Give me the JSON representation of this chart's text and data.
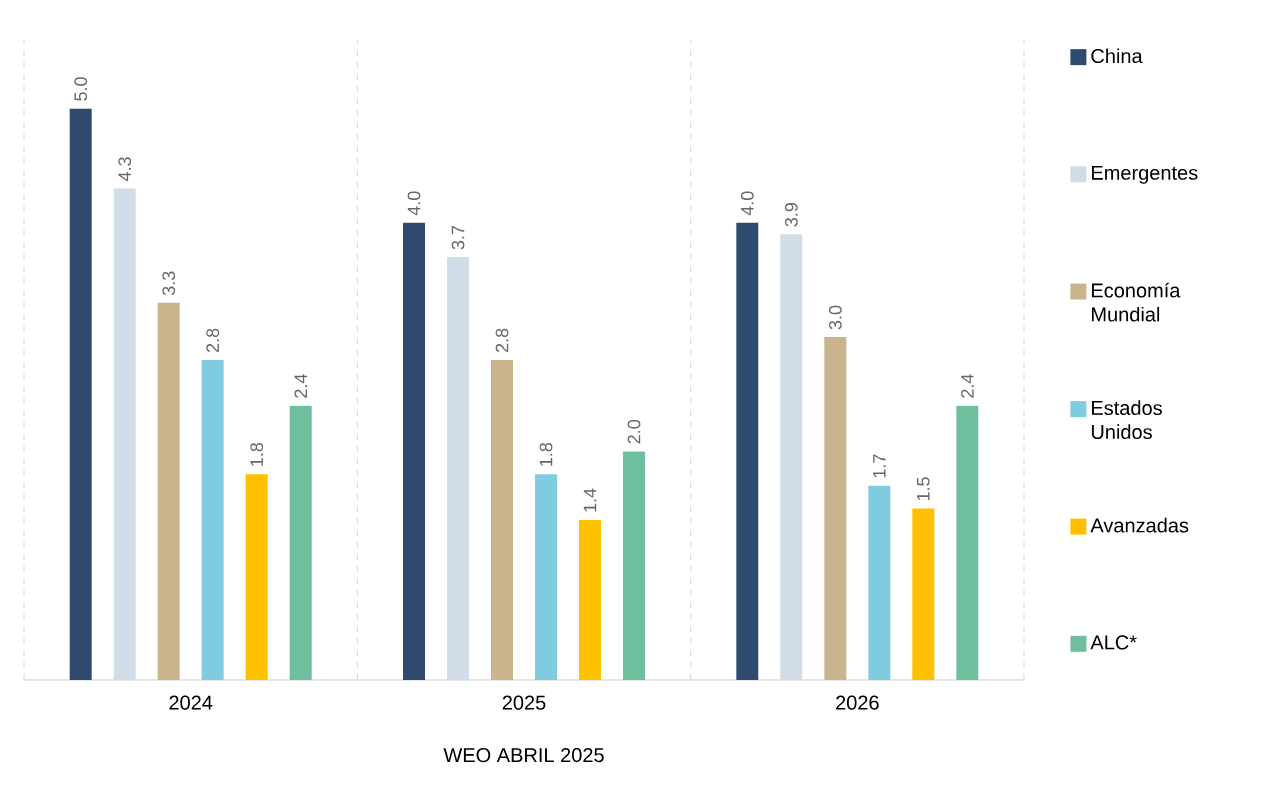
{
  "chart_data": {
    "type": "bar",
    "xlabel": "WEO ABRIL 2025",
    "categories": [
      "2024",
      "2025",
      "2026"
    ],
    "series": [
      {
        "name": "China",
        "color": "#2e4a6e",
        "values": [
          5.0,
          4.0,
          4.0
        ],
        "value_labels": [
          "5.0",
          "4.0",
          "4.0"
        ]
      },
      {
        "name": "Emergentes",
        "color": "#d0dce8",
        "values": [
          4.3,
          3.7,
          3.9
        ],
        "value_labels": [
          "4.3",
          "3.7",
          "3.9"
        ]
      },
      {
        "name": "Economía Mundial",
        "color": "#c9b48e",
        "values": [
          3.3,
          2.8,
          3.0
        ],
        "value_labels": [
          "3.3",
          "2.8",
          "3.0"
        ]
      },
      {
        "name": "Estados Unidos",
        "color": "#7fcce0",
        "values": [
          2.8,
          1.8,
          1.7
        ],
        "value_labels": [
          "2.8",
          "1.8",
          "1.7"
        ]
      },
      {
        "name": "Avanzadas",
        "color": "#ffc000",
        "values": [
          1.8,
          1.4,
          1.5
        ],
        "value_labels": [
          "1.8",
          "1.4",
          "1.5"
        ]
      },
      {
        "name": "ALC*",
        "color": "#6fbf9f",
        "values": [
          2.4,
          2.0,
          2.4
        ],
        "value_labels": [
          "2.4",
          "2.0",
          "2.4"
        ]
      }
    ],
    "grid": "x",
    "legend": "right"
  }
}
